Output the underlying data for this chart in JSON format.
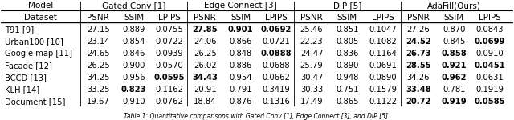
{
  "caption": "Table 1: Quantitative comparisons with Gated Conv [1], Edge Connect [3], and DIP [5].",
  "col_groups": [
    "Model",
    "Gated Conv [1]",
    "Edge Connect [3]",
    "DIP [5]",
    "AdaFill(Ours)"
  ],
  "sub_cols": [
    "PSNR",
    "SSIM",
    "LPIPS"
  ],
  "row_header": "Dataset",
  "rows": [
    {
      "name": "T91 [9]",
      "gc": [
        "27.15",
        "0.889",
        "0.0755"
      ],
      "ec": [
        "27.85",
        "0.901",
        "0.0692"
      ],
      "dip": [
        "25.46",
        "0.851",
        "0.1047"
      ],
      "af": [
        "27.26",
        "0.870",
        "0.0843"
      ]
    },
    {
      "name": "Urban100 [10]",
      "gc": [
        "23.14",
        "0.854",
        "0.0722"
      ],
      "ec": [
        "24.06",
        "0.866",
        "0.0721"
      ],
      "dip": [
        "22.23",
        "0.805",
        "0.1082"
      ],
      "af": [
        "24.52",
        "0.845",
        "0.0699"
      ]
    },
    {
      "name": "Google map [11]",
      "gc": [
        "24.65",
        "0.846",
        "0.0939"
      ],
      "ec": [
        "26.25",
        "0.848",
        "0.0888"
      ],
      "dip": [
        "24.47",
        "0.836",
        "0.1164"
      ],
      "af": [
        "26.73",
        "0.858",
        "0.0910"
      ]
    },
    {
      "name": "Facade [12]",
      "gc": [
        "26.25",
        "0.900",
        "0.0570"
      ],
      "ec": [
        "26.02",
        "0.886",
        "0.0688"
      ],
      "dip": [
        "25.79",
        "0.890",
        "0.0691"
      ],
      "af": [
        "28.55",
        "0.921",
        "0.0451"
      ]
    },
    {
      "name": "BCCD [13]",
      "gc": [
        "34.25",
        "0.956",
        "0.0595"
      ],
      "ec": [
        "34.43",
        "0.954",
        "0.0662"
      ],
      "dip": [
        "30.47",
        "0.948",
        "0.0890"
      ],
      "af": [
        "34.26",
        "0.962",
        "0.0631"
      ]
    },
    {
      "name": "KLH [14]",
      "gc": [
        "33.25",
        "0.823",
        "0.1162"
      ],
      "ec": [
        "20.91",
        "0.791",
        "0.3419"
      ],
      "dip": [
        "30.33",
        "0.751",
        "0.1579"
      ],
      "af": [
        "33.48",
        "0.781",
        "0.1919"
      ]
    },
    {
      "name": "Document [15]",
      "gc": [
        "19.67",
        "0.910",
        "0.0762"
      ],
      "ec": [
        "18.84",
        "0.876",
        "0.1316"
      ],
      "dip": [
        "17.49",
        "0.865",
        "0.1122"
      ],
      "af": [
        "20.72",
        "0.919",
        "0.0585"
      ]
    }
  ],
  "bold": {
    "T91 [9]": {
      "ec": [
        0,
        1,
        2
      ]
    },
    "Urban100 [10]": {
      "af": [
        0,
        2
      ]
    },
    "Google map [11]": {
      "ec": [
        2
      ],
      "af": [
        0,
        1
      ]
    },
    "Facade [12]": {
      "af": [
        0,
        1,
        2
      ]
    },
    "BCCD [13]": {
      "ec": [
        0
      ],
      "gc": [
        2
      ],
      "af": [
        1
      ]
    },
    "KLH [14]": {
      "gc": [
        1
      ],
      "af": [
        0
      ]
    },
    "Document [15]": {
      "af": [
        0,
        1,
        2
      ]
    }
  },
  "bg_color": "#ffffff",
  "text_color": "#000000",
  "figsize": [
    6.4,
    1.5
  ],
  "dpi": 100,
  "fs_header": 7.5,
  "fs_data": 7.2,
  "fs_caption": 5.5
}
